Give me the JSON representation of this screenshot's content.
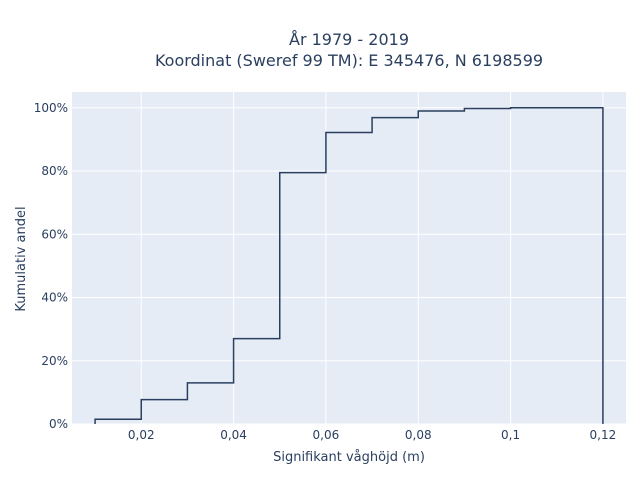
{
  "chart_data": {
    "type": "line",
    "title_lines": [
      "År 1979 - 2019",
      "Koordinat (Sweref 99 TM): E 345476, N 6198599"
    ],
    "xlabel": "Signifikant våghöjd (m)",
    "ylabel": "Kumulativ andel",
    "xlim": [
      0.005,
      0.125
    ],
    "ylim": [
      0,
      1.05
    ],
    "x_ticks": [
      0.02,
      0.04,
      0.06,
      0.08,
      0.1,
      0.12
    ],
    "x_tick_labels": [
      "0,02",
      "0,04",
      "0,06",
      "0,08",
      "0,1",
      "0,12"
    ],
    "y_ticks": [
      0,
      0.2,
      0.4,
      0.6,
      0.8,
      1.0
    ],
    "y_tick_labels": [
      "0%",
      "20%",
      "40%",
      "60%",
      "80%",
      "100%"
    ],
    "grid": true,
    "legend": false,
    "series": [
      {
        "line_shape": "step",
        "x": [
          0.01,
          0.02,
          0.03,
          0.04,
          0.05,
          0.06,
          0.07,
          0.08,
          0.09,
          0.1,
          0.12
        ],
        "y": [
          0.015,
          0.077,
          0.13,
          0.27,
          0.795,
          0.922,
          0.969,
          0.99,
          0.998,
          1.0,
          0.0
        ]
      }
    ],
    "colors": {
      "line": "#2a3f5f",
      "plot_bg": "#e5ecf6",
      "grid": "#ffffff"
    }
  }
}
